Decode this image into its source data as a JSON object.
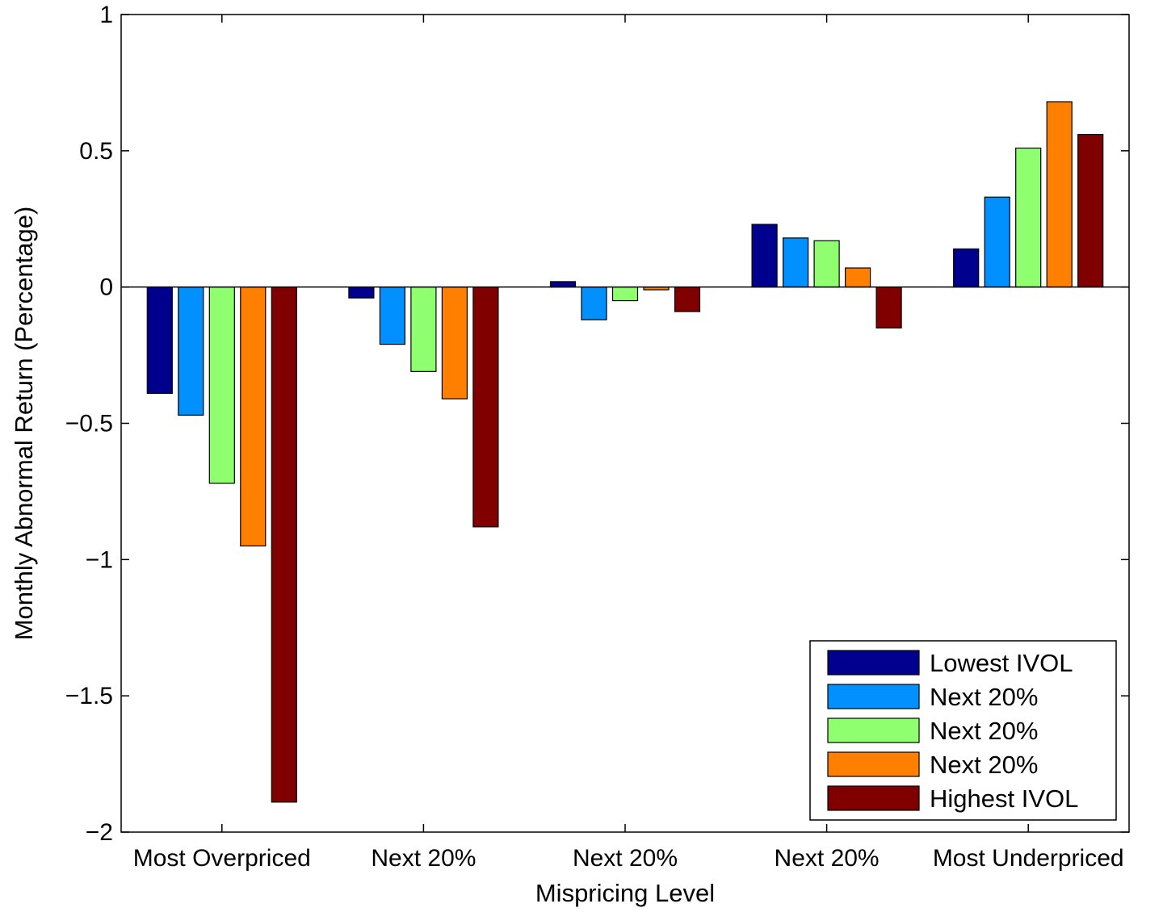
{
  "chart_data": {
    "type": "bar",
    "title": "",
    "xlabel": "Mispricing Level",
    "ylabel": "Monthly Abnormal Return (Percentage)",
    "ylim": [
      -2,
      1
    ],
    "yticks": [
      1,
      0.5,
      0,
      -0.5,
      -1,
      -1.5,
      -2
    ],
    "ytick_labels": [
      "1",
      "0.5",
      "0",
      "−0.5",
      "−1",
      "−1.5",
      "−2"
    ],
    "categories": [
      "Most Overpriced",
      "Next 20%",
      "Next 20%",
      "Next 20%",
      "Most Underpriced"
    ],
    "series": [
      {
        "name": "Lowest IVOL",
        "color": "#00008f",
        "values": [
          -0.39,
          -0.04,
          0.02,
          0.23,
          0.14
        ]
      },
      {
        "name": "Next 20%",
        "color": "#0090ff",
        "values": [
          -0.47,
          -0.21,
          -0.12,
          0.18,
          0.33
        ]
      },
      {
        "name": "Next 20%",
        "color": "#8fff70",
        "values": [
          -0.72,
          -0.31,
          -0.05,
          0.17,
          0.51
        ]
      },
      {
        "name": "Next 20%",
        "color": "#ff7f00",
        "values": [
          -0.95,
          -0.41,
          -0.01,
          0.07,
          0.68
        ]
      },
      {
        "name": "Highest IVOL",
        "color": "#800000",
        "values": [
          -1.89,
          -0.88,
          -0.09,
          -0.15,
          0.56
        ]
      }
    ],
    "grid": false,
    "legend_position": "bottom-right"
  }
}
